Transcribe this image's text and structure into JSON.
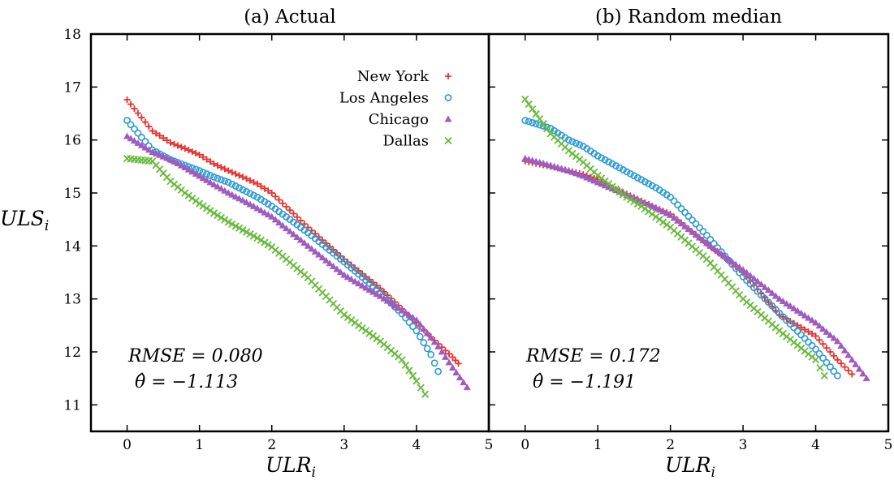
{
  "figure": {
    "ylabel": "ULS",
    "ylabel_sub": "i",
    "xlabel": "ULR",
    "xlabel_sub": "i"
  },
  "chart_data": [
    {
      "type": "scatter",
      "title": "(a) Actual",
      "xlim": [
        -0.5,
        5
      ],
      "ylim": [
        10.5,
        18
      ],
      "xticks": [
        "0",
        "1",
        "2",
        "3",
        "4",
        "5"
      ],
      "yticks": [
        "11",
        "12",
        "13",
        "14",
        "15",
        "16",
        "17",
        "18"
      ],
      "legend_position": "top-right",
      "stats": {
        "rmse_label": "RMSE = 0.080",
        "theta_label": "θ̂ = −1.113"
      },
      "series": [
        {
          "name": "New York",
          "marker": "plus",
          "color": "#e8322e",
          "points": [
            [
              0,
              16.76
            ],
            [
              0.35,
              16.17
            ],
            [
              0.6,
              15.95
            ],
            [
              0.8,
              15.84
            ],
            [
              1.0,
              15.72
            ],
            [
              1.2,
              15.55
            ],
            [
              1.4,
              15.42
            ],
            [
              1.6,
              15.3
            ],
            [
              1.8,
              15.17
            ],
            [
              2.0,
              15.0
            ],
            [
              2.5,
              14.35
            ],
            [
              3.0,
              13.75
            ],
            [
              3.5,
              13.2
            ],
            [
              4.0,
              12.55
            ],
            [
              4.3,
              12.15
            ],
            [
              4.5,
              11.9
            ],
            [
              4.58,
              11.78
            ]
          ]
        },
        {
          "name": "Los Angeles",
          "marker": "circle",
          "color": "#2a9ad6",
          "points": [
            [
              0,
              16.37
            ],
            [
              0.35,
              15.81
            ],
            [
              0.6,
              15.63
            ],
            [
              0.8,
              15.52
            ],
            [
              1.0,
              15.42
            ],
            [
              1.2,
              15.3
            ],
            [
              1.4,
              15.2
            ],
            [
              1.6,
              15.06
            ],
            [
              1.8,
              14.92
            ],
            [
              2.0,
              14.75
            ],
            [
              2.5,
              14.25
            ],
            [
              3.0,
              13.7
            ],
            [
              3.5,
              13.12
            ],
            [
              3.8,
              12.72
            ],
            [
              4.0,
              12.4
            ],
            [
              4.2,
              11.95
            ],
            [
              4.3,
              11.63
            ]
          ]
        },
        {
          "name": "Chicago",
          "marker": "triangle",
          "color": "#a05bbf",
          "points": [
            [
              0,
              16.07
            ],
            [
              0.35,
              15.77
            ],
            [
              0.6,
              15.63
            ],
            [
              0.8,
              15.48
            ],
            [
              1.0,
              15.32
            ],
            [
              1.2,
              15.16
            ],
            [
              1.4,
              15.0
            ],
            [
              1.6,
              14.86
            ],
            [
              1.8,
              14.71
            ],
            [
              2.0,
              14.55
            ],
            [
              2.5,
              14.0
            ],
            [
              3.0,
              13.45
            ],
            [
              3.5,
              13.05
            ],
            [
              4.0,
              12.6
            ],
            [
              4.3,
              12.1
            ],
            [
              4.5,
              11.7
            ],
            [
              4.7,
              11.33
            ]
          ]
        },
        {
          "name": "Dallas",
          "marker": "x",
          "color": "#66bb3a",
          "points": [
            [
              0,
              15.65
            ],
            [
              0.35,
              15.6
            ],
            [
              0.6,
              15.22
            ],
            [
              0.8,
              15.0
            ],
            [
              1.0,
              14.8
            ],
            [
              1.2,
              14.62
            ],
            [
              1.4,
              14.45
            ],
            [
              1.6,
              14.3
            ],
            [
              1.8,
              14.15
            ],
            [
              2.0,
              13.98
            ],
            [
              2.5,
              13.4
            ],
            [
              3.0,
              12.7
            ],
            [
              3.5,
              12.2
            ],
            [
              3.8,
              11.85
            ],
            [
              4.0,
              11.45
            ],
            [
              4.12,
              11.2
            ]
          ]
        }
      ]
    },
    {
      "type": "scatter",
      "title": "(b) Random median",
      "xlim": [
        -0.5,
        5
      ],
      "ylim": [
        10.5,
        18
      ],
      "xticks": [
        "0",
        "1",
        "2",
        "3",
        "4",
        "5"
      ],
      "yticks": [
        "11",
        "12",
        "13",
        "14",
        "15",
        "16",
        "17",
        "18"
      ],
      "stats": {
        "rmse_label": "RMSE = 0.172",
        "theta_label": "θ̂ = −1.191"
      },
      "series": [
        {
          "name": "New York",
          "marker": "plus",
          "color": "#e8322e",
          "points": [
            [
              0,
              15.6
            ],
            [
              0.35,
              15.5
            ],
            [
              0.6,
              15.42
            ],
            [
              0.8,
              15.35
            ],
            [
              1.0,
              15.25
            ],
            [
              1.2,
              15.1
            ],
            [
              1.4,
              14.98
            ],
            [
              1.6,
              14.85
            ],
            [
              1.8,
              14.72
            ],
            [
              2.0,
              14.6
            ],
            [
              2.5,
              14.05
            ],
            [
              3.0,
              13.5
            ],
            [
              3.5,
              12.7
            ],
            [
              4.0,
              12.3
            ],
            [
              4.3,
              11.85
            ],
            [
              4.5,
              11.58
            ]
          ]
        },
        {
          "name": "Los Angeles",
          "marker": "circle",
          "color": "#2a9ad6",
          "points": [
            [
              0,
              16.37
            ],
            [
              0.35,
              16.22
            ],
            [
              0.6,
              16.0
            ],
            [
              0.8,
              15.88
            ],
            [
              1.0,
              15.7
            ],
            [
              1.2,
              15.55
            ],
            [
              1.4,
              15.4
            ],
            [
              1.6,
              15.25
            ],
            [
              1.8,
              15.1
            ],
            [
              2.0,
              14.92
            ],
            [
              2.5,
              14.2
            ],
            [
              3.0,
              13.42
            ],
            [
              3.5,
              12.73
            ],
            [
              4.0,
              12.05
            ],
            [
              4.3,
              11.55
            ]
          ]
        },
        {
          "name": "Chicago",
          "marker": "triangle",
          "color": "#a05bbf",
          "points": [
            [
              0,
              15.65
            ],
            [
              0.35,
              15.52
            ],
            [
              0.6,
              15.42
            ],
            [
              0.8,
              15.32
            ],
            [
              1.0,
              15.2
            ],
            [
              1.2,
              15.08
            ],
            [
              1.4,
              14.96
            ],
            [
              1.6,
              14.84
            ],
            [
              1.8,
              14.72
            ],
            [
              2.0,
              14.58
            ],
            [
              2.5,
              14.05
            ],
            [
              3.0,
              13.55
            ],
            [
              3.5,
              13.0
            ],
            [
              4.0,
              12.55
            ],
            [
              4.3,
              12.2
            ],
            [
              4.5,
              11.85
            ],
            [
              4.7,
              11.5
            ]
          ]
        },
        {
          "name": "Dallas",
          "marker": "x",
          "color": "#66bb3a",
          "points": [
            [
              0,
              16.77
            ],
            [
              0.35,
              16.12
            ],
            [
              0.6,
              15.8
            ],
            [
              0.8,
              15.58
            ],
            [
              1.0,
              15.33
            ],
            [
              1.2,
              15.12
            ],
            [
              1.4,
              14.92
            ],
            [
              1.6,
              14.75
            ],
            [
              1.8,
              14.55
            ],
            [
              2.0,
              14.35
            ],
            [
              2.5,
              13.75
            ],
            [
              3.0,
              13.0
            ],
            [
              3.5,
              12.4
            ],
            [
              4.0,
              11.85
            ],
            [
              4.12,
              11.55
            ]
          ]
        }
      ]
    }
  ]
}
